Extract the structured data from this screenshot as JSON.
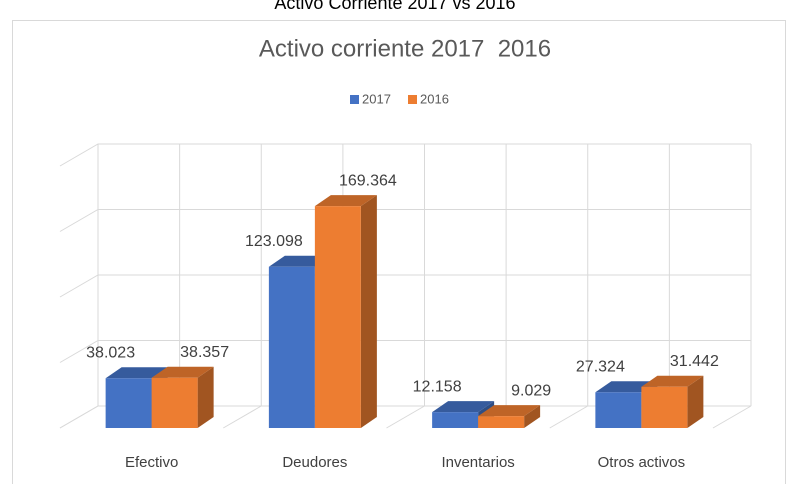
{
  "heading": "Activo Corriente 2017 vs 2016",
  "chart_data": {
    "type": "bar3d",
    "title": "Activo corriente 2017  2016",
    "categories": [
      "Efectivo",
      "Deudores",
      "Inventarios",
      "Otros activos"
    ],
    "series": [
      {
        "name": "2017",
        "color": "#4472c4",
        "values": [
          38.023,
          123.098,
          12.158,
          27.324
        ]
      },
      {
        "name": "2016",
        "color": "#ed7d31",
        "values": [
          38.357,
          169.364,
          9.029,
          31.442
        ]
      }
    ],
    "ylim": [
      0,
      200
    ],
    "yticks": [
      0,
      50,
      100,
      150,
      200
    ],
    "grid": true,
    "legend": "top"
  }
}
